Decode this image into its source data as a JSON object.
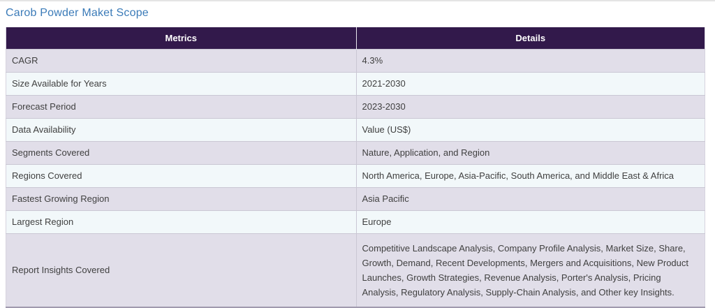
{
  "page": {
    "title": "Carob Powder Maket Scope"
  },
  "table": {
    "columns": {
      "metrics": "Metrics",
      "details": "Details"
    },
    "rows": [
      {
        "metric": "CAGR",
        "detail": "4.3%"
      },
      {
        "metric": "Size Available for Years",
        "detail": "2021-2030"
      },
      {
        "metric": "Forecast Period",
        "detail": "2023-2030"
      },
      {
        "metric": "Data Availability",
        "detail": "Value (US$)"
      },
      {
        "metric": "Segments Covered",
        "detail": "Nature, Application, and Region"
      },
      {
        "metric": "Regions Covered",
        "detail": "North America, Europe, Asia-Pacific, South America, and Middle East & Africa"
      },
      {
        "metric": "Fastest Growing Region",
        "detail": "Asia Pacific"
      },
      {
        "metric": "Largest Region",
        "detail": "Europe"
      },
      {
        "metric": "Report Insights Covered",
        "detail": "Competitive Landscape Analysis, Company Profile Analysis, Market Size, Share, Growth, Demand, Recent Developments, Mergers and Acquisitions, New Product Launches, Growth Strategies, Revenue Analysis, Porter's Analysis, Pricing Analysis, Regulatory Analysis, Supply-Chain Analysis, and Other key Insights."
      }
    ]
  },
  "colors": {
    "header_bg": "#32194b",
    "row_alt_bg": "#e1dee9",
    "row_bg": "#f2f8fa",
    "title_color": "#3b7bb8",
    "body_text": "#404040",
    "grid_line": "#cac7d4",
    "outer_line": "#d6d3de",
    "bottom_line": "#a09aae",
    "top_line": "#e4e4e4"
  }
}
